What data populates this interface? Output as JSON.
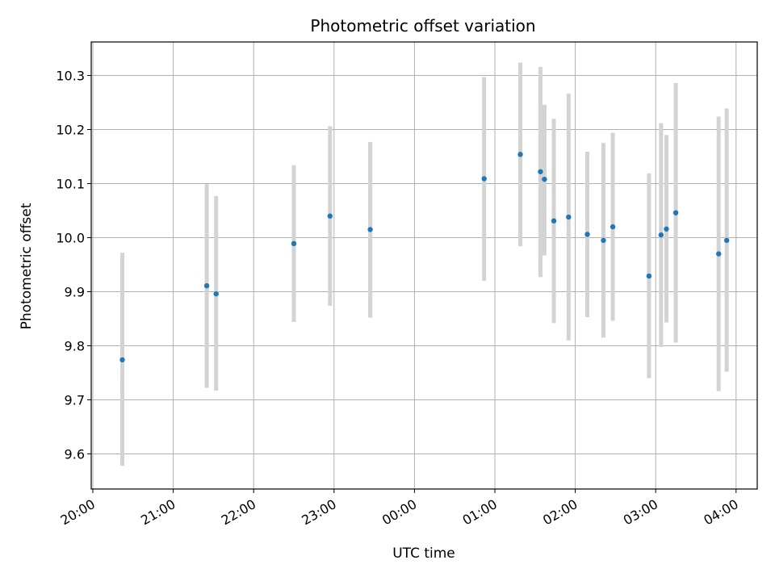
{
  "chart_data": {
    "type": "scatter",
    "title": "Photometric offset variation",
    "xlabel": "UTC time",
    "ylabel": "Photometric offset",
    "x_tick_labels": [
      "20:00",
      "21:00",
      "22:00",
      "23:00",
      "00:00",
      "01:00",
      "02:00",
      "03:00",
      "04:00"
    ],
    "y_tick_labels": [
      "9.6",
      "9.7",
      "9.8",
      "9.9",
      "10.0",
      "10.1",
      "10.2",
      "10.3"
    ],
    "ylim": [
      9.535,
      10.362
    ],
    "grid": true,
    "point_color": "#1f77b4",
    "errorbar_color": "#d3d3d3",
    "points": [
      {
        "x": "20:22",
        "y": 9.774,
        "y_low": 9.578,
        "y_high": 9.972
      },
      {
        "x": "21:25",
        "y": 9.911,
        "y_low": 9.722,
        "y_high": 10.099
      },
      {
        "x": "21:32",
        "y": 9.896,
        "y_low": 9.717,
        "y_high": 10.077
      },
      {
        "x": "22:30",
        "y": 9.989,
        "y_low": 9.844,
        "y_high": 10.134
      },
      {
        "x": "22:57",
        "y": 10.04,
        "y_low": 9.874,
        "y_high": 10.206
      },
      {
        "x": "23:27",
        "y": 10.015,
        "y_low": 9.852,
        "y_high": 10.177
      },
      {
        "x": "00:52",
        "y": 10.109,
        "y_low": 9.92,
        "y_high": 10.297
      },
      {
        "x": "01:19",
        "y": 10.154,
        "y_low": 9.984,
        "y_high": 10.324
      },
      {
        "x": "01:34",
        "y": 10.122,
        "y_low": 9.927,
        "y_high": 10.316
      },
      {
        "x": "01:37",
        "y": 10.108,
        "y_low": 9.967,
        "y_high": 10.246
      },
      {
        "x": "01:44",
        "y": 10.031,
        "y_low": 9.842,
        "y_high": 10.22
      },
      {
        "x": "01:55",
        "y": 10.038,
        "y_low": 9.81,
        "y_high": 10.266
      },
      {
        "x": "02:09",
        "y": 10.006,
        "y_low": 9.853,
        "y_high": 10.159
      },
      {
        "x": "02:21",
        "y": 9.995,
        "y_low": 9.815,
        "y_high": 10.175
      },
      {
        "x": "02:28",
        "y": 10.02,
        "y_low": 9.846,
        "y_high": 10.194
      },
      {
        "x": "02:55",
        "y": 9.929,
        "y_low": 9.74,
        "y_high": 10.119
      },
      {
        "x": "03:04",
        "y": 10.005,
        "y_low": 9.798,
        "y_high": 10.212
      },
      {
        "x": "03:08",
        "y": 10.016,
        "y_low": 9.843,
        "y_high": 10.19
      },
      {
        "x": "03:15",
        "y": 10.046,
        "y_low": 9.806,
        "y_high": 10.286
      },
      {
        "x": "03:47",
        "y": 9.97,
        "y_low": 9.716,
        "y_high": 10.224
      },
      {
        "x": "03:53",
        "y": 9.995,
        "y_low": 9.752,
        "y_high": 10.239
      }
    ]
  }
}
